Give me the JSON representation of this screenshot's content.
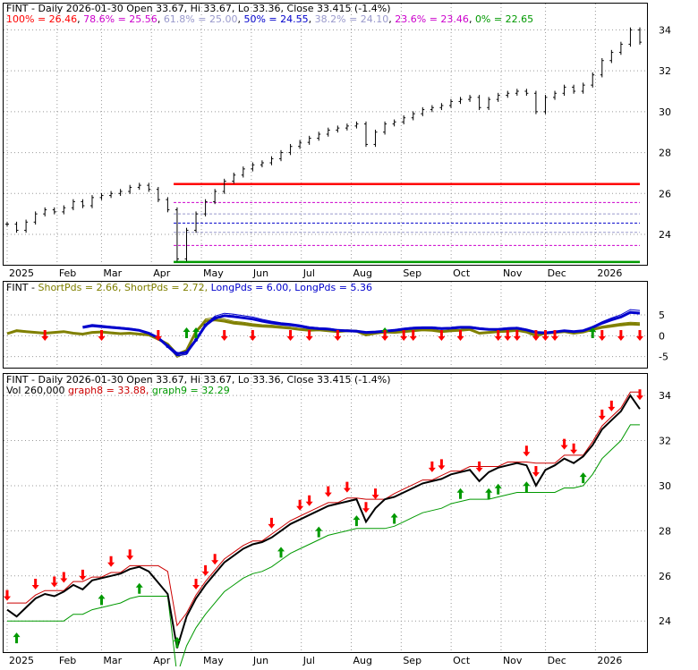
{
  "chart_data": [
    {
      "type": "line",
      "panel": "price",
      "title": "FINT - Daily 2026-01-30 Open 33.67, Hi 33.67, Lo 33.36, Close 33.415 (-1.4%)",
      "fib_levels": [
        {
          "label": "100%",
          "value": 26.46,
          "text": "100% = 26.46",
          "color": "#ff0000"
        },
        {
          "label": "78.6%",
          "value": 25.56,
          "text": "78.6% = 25.56",
          "color": "#cc00cc"
        },
        {
          "label": "61.8%",
          "value": 25.0,
          "text": "61.8% = 25.00",
          "color": "#9999cc"
        },
        {
          "label": "50%",
          "value": 24.55,
          "text": "50% = 24.55",
          "color": "#0000cc"
        },
        {
          "label": "38.2%",
          "value": 24.1,
          "text": "38.2% = 24.10",
          "color": "#9999cc"
        },
        {
          "label": "23.6%",
          "value": 23.46,
          "text": "23.6% = 23.46",
          "color": "#cc00cc"
        },
        {
          "label": "0%",
          "value": 22.65,
          "text": "0% = 22.65",
          "color": "#009900"
        }
      ],
      "x_labels": [
        "2025",
        "Feb",
        "Mar",
        "Apr",
        "May",
        "Jun",
        "Jul",
        "Aug",
        "Sep",
        "Oct",
        "Nov",
        "Dec",
        "2026"
      ],
      "y_ticks": [
        "34",
        "32",
        "30",
        "28",
        "26",
        "24"
      ],
      "ylim": [
        22.6,
        34.5
      ],
      "close_by_week": [
        24.5,
        24.2,
        24.6,
        25.0,
        25.2,
        25.1,
        25.3,
        25.6,
        25.4,
        25.8,
        25.9,
        26.0,
        26.1,
        26.3,
        26.4,
        26.2,
        25.7,
        25.2,
        22.8,
        24.2,
        25.0,
        25.6,
        26.1,
        26.6,
        26.9,
        27.2,
        27.4,
        27.5,
        27.7,
        28.0,
        28.3,
        28.5,
        28.7,
        28.9,
        29.1,
        29.2,
        29.3,
        29.4,
        28.4,
        29.0,
        29.4,
        29.5,
        29.7,
        29.9,
        30.1,
        30.2,
        30.3,
        30.5,
        30.6,
        30.7,
        30.2,
        30.6,
        30.8,
        30.9,
        31.0,
        30.9,
        30.0,
        30.7,
        30.9,
        31.2,
        31.0,
        31.3,
        31.8,
        32.5,
        32.9,
        33.3,
        34.0,
        33.4
      ]
    },
    {
      "type": "line",
      "panel": "guppy",
      "title": "FINT - ShortPds = 2.66, ShortPds = 2.72, LongPds = 6.00, LongPds = 5.36",
      "legend": [
        {
          "text": "FINT - ",
          "color": "#000000"
        },
        {
          "text": "ShortPds = 2.66, ",
          "color": "#808000"
        },
        {
          "text": "ShortPds = 2.72, ",
          "color": "#808000"
        },
        {
          "text": "LongPds = 6.00, ",
          "color": "#0000cc"
        },
        {
          "text": "LongPds = 5.36",
          "color": "#0000cc"
        }
      ],
      "y_ticks": [
        "5",
        "0",
        "-5"
      ],
      "ylim": [
        -7,
        8
      ],
      "short_pds": [
        0.5,
        1.2,
        1.0,
        0.8,
        0.6,
        0.8,
        1.0,
        0.6,
        0.4,
        0.8,
        0.9,
        0.7,
        0.5,
        0.6,
        0.4,
        0.2,
        -0.8,
        -2.0,
        -4.5,
        -3.5,
        1.0,
        3.5,
        3.8,
        3.5,
        3.0,
        2.8,
        2.5,
        2.3,
        2.2,
        2.0,
        1.8,
        1.5,
        1.3,
        1.4,
        1.2,
        1.0,
        1.2,
        1.1,
        0.2,
        0.6,
        0.9,
        0.8,
        1.0,
        1.2,
        1.4,
        1.3,
        1.0,
        1.2,
        1.3,
        1.5,
        0.6,
        0.8,
        1.0,
        1.1,
        1.3,
        0.9,
        0.0,
        0.6,
        0.8,
        1.0,
        0.6,
        0.9,
        1.5,
        2.0,
        2.3,
        2.6,
        2.8,
        2.7
      ],
      "long_pds": [
        null,
        null,
        null,
        null,
        null,
        null,
        null,
        null,
        2.0,
        2.4,
        2.2,
        2.0,
        1.8,
        1.6,
        1.3,
        0.6,
        -0.5,
        -2.5,
        -4.3,
        -4.0,
        -1.0,
        2.5,
        4.2,
        4.8,
        4.6,
        4.3,
        4.0,
        3.5,
        3.1,
        2.8,
        2.6,
        2.3,
        1.9,
        1.7,
        1.6,
        1.3,
        1.2,
        1.1,
        0.8,
        0.9,
        1.1,
        1.3,
        1.6,
        1.8,
        1.9,
        1.9,
        1.7,
        1.8,
        2.0,
        2.0,
        1.7,
        1.5,
        1.5,
        1.7,
        1.8,
        1.4,
        0.8,
        0.7,
        0.9,
        1.2,
        1.0,
        1.2,
        2.0,
        3.0,
        3.8,
        4.5,
        5.6,
        5.4
      ],
      "up_arrows_week": [
        19,
        20,
        40,
        62
      ],
      "down_arrows_week": [
        4,
        10,
        16,
        23,
        26,
        30,
        32,
        35,
        40,
        42,
        43,
        46,
        48,
        52,
        53,
        54,
        56,
        57,
        58,
        63,
        65,
        67
      ]
    },
    {
      "type": "line",
      "panel": "volume-stop",
      "title": "FINT - Daily 2026-01-30 Open 33.67, Hi 33.67, Lo 33.36, Close 33.415 (-1.4%)",
      "subtitle": [
        {
          "text": "Vol 260,000 ",
          "color": "#000000"
        },
        {
          "text": "graph8 = 33.88, ",
          "color": "#cc0000"
        },
        {
          "text": "graph9 = 32.29",
          "color": "#009900"
        }
      ],
      "x_labels": [
        "2025",
        "Feb",
        "Mar",
        "Apr",
        "May",
        "Jun",
        "Jul",
        "Aug",
        "Sep",
        "Oct",
        "Nov",
        "Dec",
        "2026"
      ],
      "y_ticks": [
        "34",
        "32",
        "30",
        "28",
        "26",
        "24"
      ],
      "ylim": [
        22.7,
        34.4
      ],
      "up_arrows_week": [
        1,
        10,
        14,
        18,
        29,
        33,
        37,
        41,
        48,
        51,
        52,
        55,
        61
      ],
      "down_arrows_week": [
        0,
        3,
        5,
        6,
        8,
        11,
        13,
        20,
        21,
        22,
        28,
        31,
        32,
        34,
        36,
        38,
        39,
        45,
        46,
        50,
        55,
        56,
        59,
        60,
        63,
        64,
        67
      ]
    }
  ]
}
